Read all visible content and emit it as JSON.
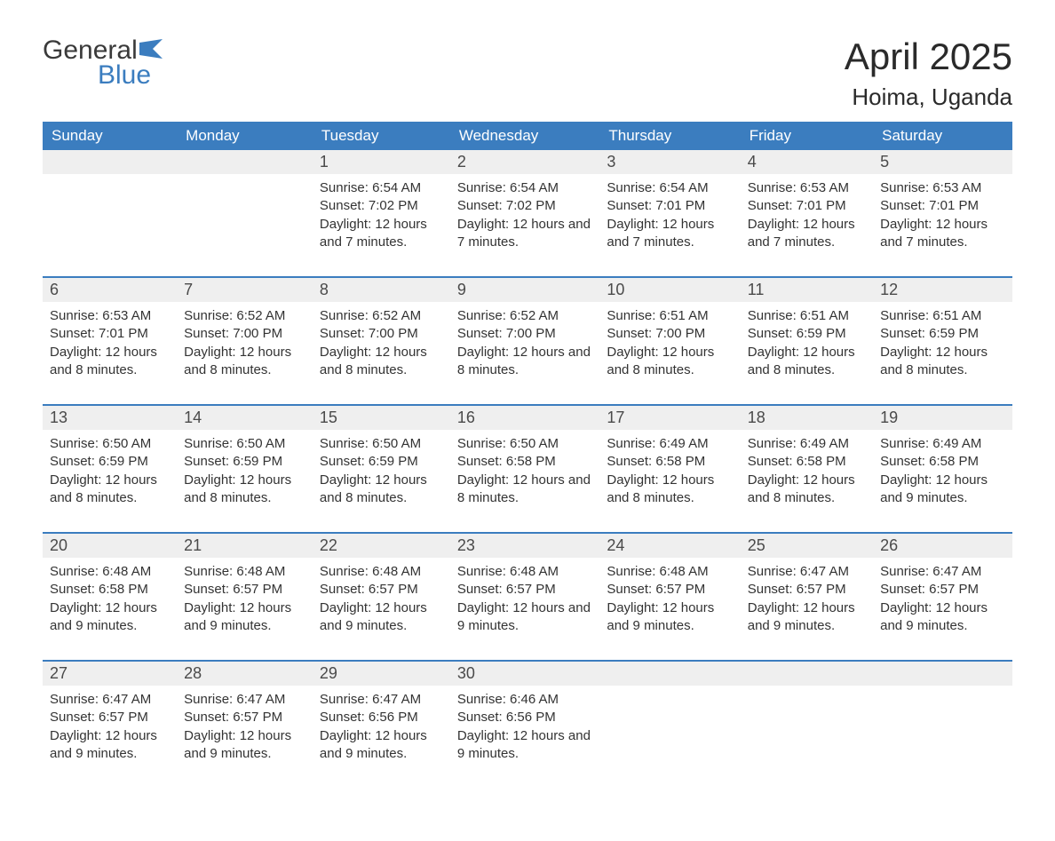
{
  "logo": {
    "word1": "General",
    "word2": "Blue",
    "mark_color": "#3b7dbf",
    "text_color_general": "#3a3a3a",
    "text_color_blue": "#3b7dbf"
  },
  "title": "April 2025",
  "location": "Hoima, Uganda",
  "colors": {
    "header_bg": "#3b7dbf",
    "header_text": "#ffffff",
    "daynum_bg": "#efefef",
    "daynum_text": "#4a4a4a",
    "body_text": "#333333",
    "week_divider": "#3b7dbf",
    "page_bg": "#ffffff"
  },
  "layout": {
    "font_family": "Arial",
    "title_fontsize_pt": 32,
    "location_fontsize_pt": 20,
    "dayhead_fontsize_pt": 13,
    "daynum_fontsize_pt": 14,
    "body_fontsize_pt": 11,
    "columns": 7
  },
  "labels": {
    "sunrise": "Sunrise:",
    "sunset": "Sunset:",
    "daylight": "Daylight:"
  },
  "day_headers": [
    "Sunday",
    "Monday",
    "Tuesday",
    "Wednesday",
    "Thursday",
    "Friday",
    "Saturday"
  ],
  "weeks": [
    [
      null,
      null,
      {
        "n": "1",
        "sunrise": "6:54 AM",
        "sunset": "7:02 PM",
        "daylight": "12 hours and 7 minutes."
      },
      {
        "n": "2",
        "sunrise": "6:54 AM",
        "sunset": "7:02 PM",
        "daylight": "12 hours and 7 minutes."
      },
      {
        "n": "3",
        "sunrise": "6:54 AM",
        "sunset": "7:01 PM",
        "daylight": "12 hours and 7 minutes."
      },
      {
        "n": "4",
        "sunrise": "6:53 AM",
        "sunset": "7:01 PM",
        "daylight": "12 hours and 7 minutes."
      },
      {
        "n": "5",
        "sunrise": "6:53 AM",
        "sunset": "7:01 PM",
        "daylight": "12 hours and 7 minutes."
      }
    ],
    [
      {
        "n": "6",
        "sunrise": "6:53 AM",
        "sunset": "7:01 PM",
        "daylight": "12 hours and 8 minutes."
      },
      {
        "n": "7",
        "sunrise": "6:52 AM",
        "sunset": "7:00 PM",
        "daylight": "12 hours and 8 minutes."
      },
      {
        "n": "8",
        "sunrise": "6:52 AM",
        "sunset": "7:00 PM",
        "daylight": "12 hours and 8 minutes."
      },
      {
        "n": "9",
        "sunrise": "6:52 AM",
        "sunset": "7:00 PM",
        "daylight": "12 hours and 8 minutes."
      },
      {
        "n": "10",
        "sunrise": "6:51 AM",
        "sunset": "7:00 PM",
        "daylight": "12 hours and 8 minutes."
      },
      {
        "n": "11",
        "sunrise": "6:51 AM",
        "sunset": "6:59 PM",
        "daylight": "12 hours and 8 minutes."
      },
      {
        "n": "12",
        "sunrise": "6:51 AM",
        "sunset": "6:59 PM",
        "daylight": "12 hours and 8 minutes."
      }
    ],
    [
      {
        "n": "13",
        "sunrise": "6:50 AM",
        "sunset": "6:59 PM",
        "daylight": "12 hours and 8 minutes."
      },
      {
        "n": "14",
        "sunrise": "6:50 AM",
        "sunset": "6:59 PM",
        "daylight": "12 hours and 8 minutes."
      },
      {
        "n": "15",
        "sunrise": "6:50 AM",
        "sunset": "6:59 PM",
        "daylight": "12 hours and 8 minutes."
      },
      {
        "n": "16",
        "sunrise": "6:50 AM",
        "sunset": "6:58 PM",
        "daylight": "12 hours and 8 minutes."
      },
      {
        "n": "17",
        "sunrise": "6:49 AM",
        "sunset": "6:58 PM",
        "daylight": "12 hours and 8 minutes."
      },
      {
        "n": "18",
        "sunrise": "6:49 AM",
        "sunset": "6:58 PM",
        "daylight": "12 hours and 8 minutes."
      },
      {
        "n": "19",
        "sunrise": "6:49 AM",
        "sunset": "6:58 PM",
        "daylight": "12 hours and 9 minutes."
      }
    ],
    [
      {
        "n": "20",
        "sunrise": "6:48 AM",
        "sunset": "6:58 PM",
        "daylight": "12 hours and 9 minutes."
      },
      {
        "n": "21",
        "sunrise": "6:48 AM",
        "sunset": "6:57 PM",
        "daylight": "12 hours and 9 minutes."
      },
      {
        "n": "22",
        "sunrise": "6:48 AM",
        "sunset": "6:57 PM",
        "daylight": "12 hours and 9 minutes."
      },
      {
        "n": "23",
        "sunrise": "6:48 AM",
        "sunset": "6:57 PM",
        "daylight": "12 hours and 9 minutes."
      },
      {
        "n": "24",
        "sunrise": "6:48 AM",
        "sunset": "6:57 PM",
        "daylight": "12 hours and 9 minutes."
      },
      {
        "n": "25",
        "sunrise": "6:47 AM",
        "sunset": "6:57 PM",
        "daylight": "12 hours and 9 minutes."
      },
      {
        "n": "26",
        "sunrise": "6:47 AM",
        "sunset": "6:57 PM",
        "daylight": "12 hours and 9 minutes."
      }
    ],
    [
      {
        "n": "27",
        "sunrise": "6:47 AM",
        "sunset": "6:57 PM",
        "daylight": "12 hours and 9 minutes."
      },
      {
        "n": "28",
        "sunrise": "6:47 AM",
        "sunset": "6:57 PM",
        "daylight": "12 hours and 9 minutes."
      },
      {
        "n": "29",
        "sunrise": "6:47 AM",
        "sunset": "6:56 PM",
        "daylight": "12 hours and 9 minutes."
      },
      {
        "n": "30",
        "sunrise": "6:46 AM",
        "sunset": "6:56 PM",
        "daylight": "12 hours and 9 minutes."
      },
      null,
      null,
      null
    ]
  ]
}
